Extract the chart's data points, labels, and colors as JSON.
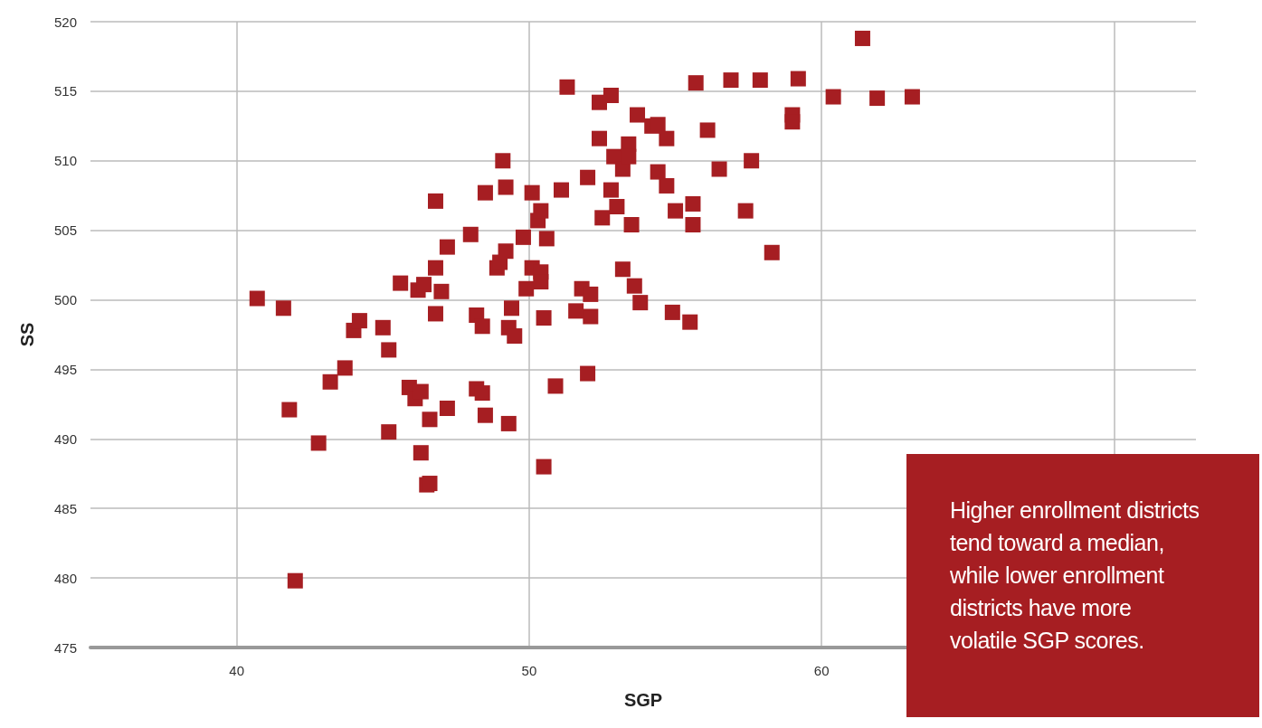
{
  "chart_data": {
    "type": "scatter",
    "xlabel": "SGP",
    "ylabel": "SS",
    "xlim": [
      35,
      72.8
    ],
    "xticks": [
      40,
      50,
      60,
      {
        "value": 70,
        "label": null
      }
    ],
    "ylim": [
      475,
      520
    ],
    "yticks": [
      475,
      480,
      485,
      490,
      495,
      500,
      505,
      510,
      515,
      520
    ],
    "grid": true,
    "marker": "square",
    "annotations": [
      "Higher enrollment districts tend toward a median, while lower enrollment districts have more volatile SGP scores."
    ],
    "series": [
      {
        "color": "#a61e22",
        "x": [
          40.7,
          41.6,
          41.8,
          42.0,
          42.8,
          43.2,
          43.7,
          44.0,
          44.2,
          45.0,
          45.2,
          45.2,
          45.6,
          45.9,
          46.1,
          46.2,
          46.3,
          46.3,
          46.4,
          46.5,
          46.6,
          46.6,
          46.8,
          46.8,
          46.8,
          47.0,
          47.2,
          47.2,
          48.0,
          48.2,
          48.2,
          48.4,
          48.4,
          48.5,
          48.5,
          48.9,
          49.0,
          49.1,
          49.2,
          49.2,
          49.3,
          49.3,
          49.4,
          49.5,
          49.8,
          49.9,
          50.1,
          50.1,
          50.3,
          50.4,
          50.4,
          50.4,
          50.5,
          50.5,
          50.6,
          50.9,
          51.1,
          51.3,
          51.6,
          51.8,
          52.0,
          52.0,
          52.1,
          52.1,
          52.4,
          52.4,
          52.5,
          52.8,
          52.8,
          52.9,
          53.0,
          53.2,
          53.2,
          53.4,
          53.4,
          53.5,
          53.6,
          53.7,
          53.8,
          54.2,
          54.4,
          54.4,
          54.7,
          54.7,
          54.9,
          55.0,
          55.5,
          55.6,
          55.6,
          55.7,
          56.1,
          56.5,
          56.9,
          57.4,
          57.6,
          57.9,
          58.3,
          59.0,
          59.0,
          59.2,
          60.4,
          61.4,
          61.9,
          63.1
        ],
        "values": [
          500.1,
          499.4,
          492.1,
          479.8,
          489.7,
          494.1,
          495.1,
          497.8,
          498.5,
          498.0,
          496.4,
          490.5,
          501.2,
          493.7,
          492.9,
          500.7,
          493.4,
          489.0,
          501.1,
          486.7,
          486.8,
          491.4,
          507.1,
          502.3,
          499.0,
          500.6,
          503.8,
          492.2,
          504.7,
          498.9,
          493.6,
          498.1,
          493.3,
          507.7,
          491.7,
          502.3,
          502.7,
          510.0,
          508.1,
          503.5,
          498.0,
          491.1,
          499.4,
          497.4,
          504.5,
          500.8,
          507.7,
          502.3,
          505.7,
          506.4,
          502.0,
          501.3,
          498.7,
          488.0,
          504.4,
          493.8,
          507.9,
          515.3,
          499.2,
          500.8,
          508.8,
          494.7,
          500.4,
          498.8,
          514.2,
          511.6,
          505.9,
          514.7,
          507.9,
          510.3,
          506.7,
          509.4,
          502.2,
          511.2,
          510.3,
          505.4,
          501.0,
          513.3,
          499.8,
          512.5,
          512.6,
          509.2,
          511.6,
          508.2,
          499.1,
          506.4,
          498.4,
          506.9,
          505.4,
          515.6,
          512.2,
          509.4,
          515.8,
          506.4,
          510.0,
          515.8,
          503.4,
          513.3,
          512.8,
          515.9,
          514.6,
          518.8,
          514.5,
          514.6
        ]
      }
    ]
  }
}
